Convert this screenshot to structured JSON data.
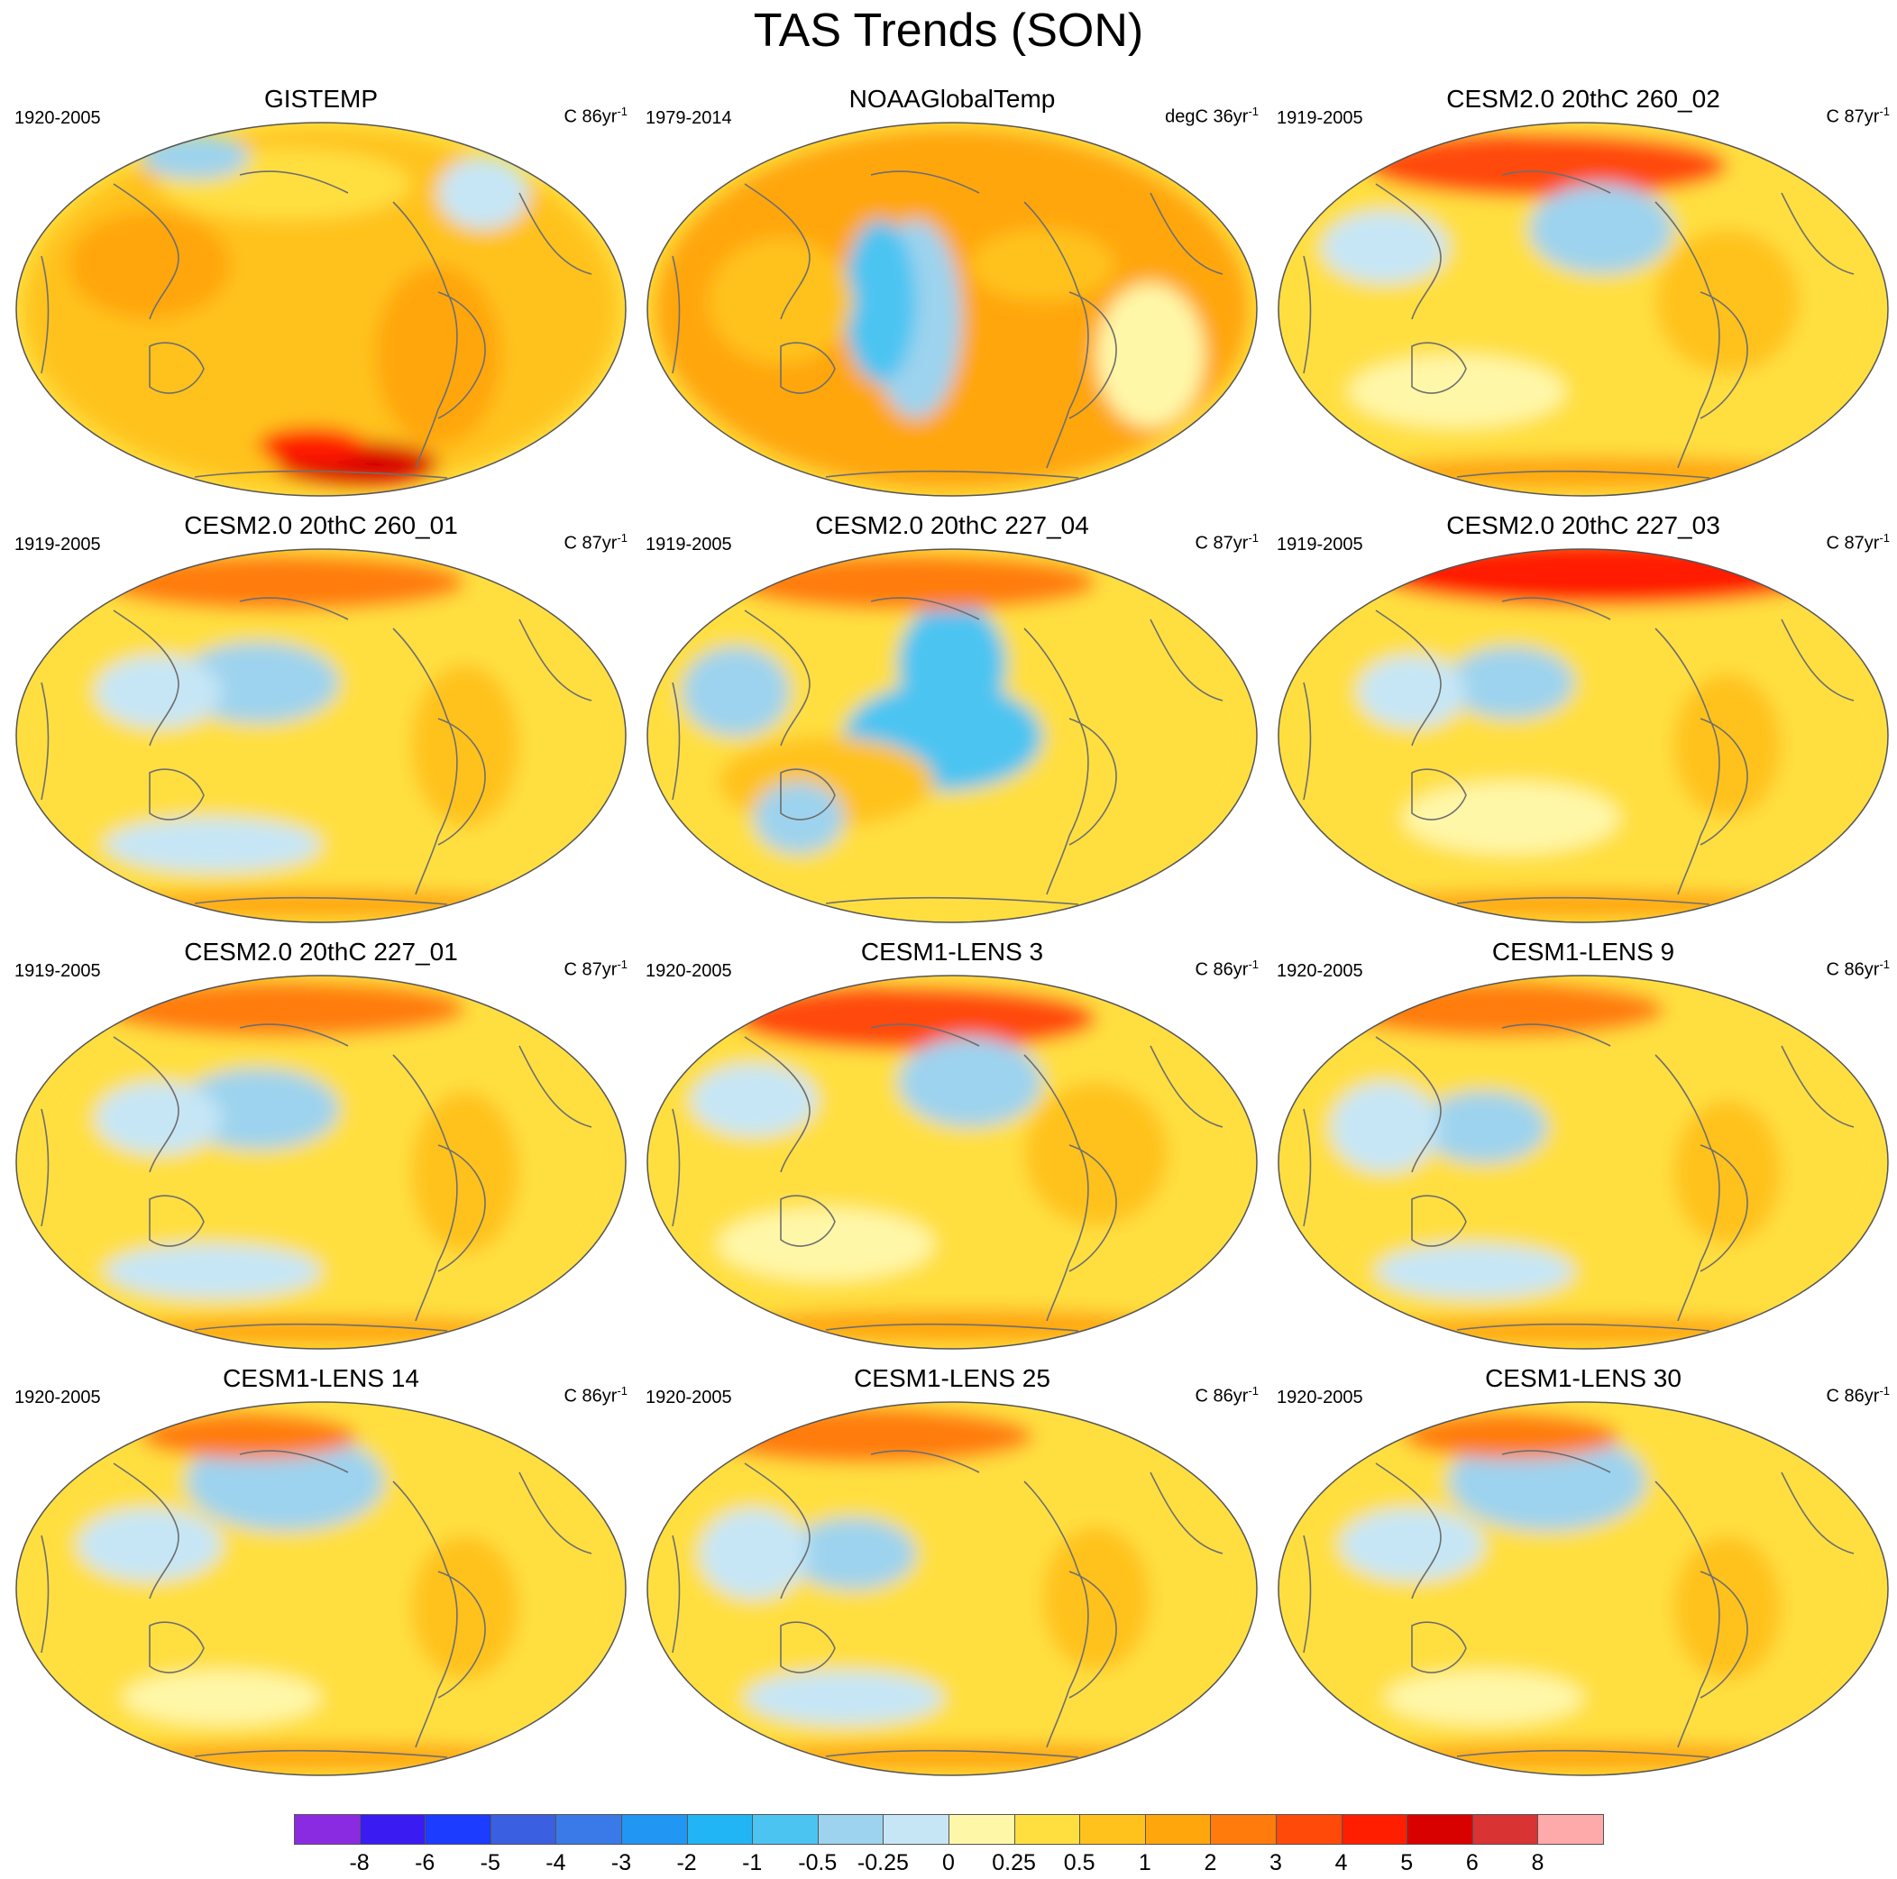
{
  "title": "TAS Trends (SON)",
  "panels": [
    {
      "title": "GISTEMP",
      "period": "1920-2005",
      "units": "C 86yr",
      "units_sup": "-1",
      "style": "obs-gis"
    },
    {
      "title": "NOAAGlobalTemp",
      "period": "1979-2014",
      "units": "degC 36yr",
      "units_sup": "-1",
      "style": "obs-noaa"
    },
    {
      "title": "CESM2.0 20thC 260_02",
      "period": "1919-2005",
      "units": "C 87yr",
      "units_sup": "-1",
      "style": "model-a"
    },
    {
      "title": "CESM2.0 20thC 260_01",
      "period": "1919-2005",
      "units": "C 87yr",
      "units_sup": "-1",
      "style": "model-b"
    },
    {
      "title": "CESM2.0 20thC 227_04",
      "period": "1919-2005",
      "units": "C 87yr",
      "units_sup": "-1",
      "style": "model-cold-pac"
    },
    {
      "title": "CESM2.0 20thC 227_03",
      "period": "1919-2005",
      "units": "C 87yr",
      "units_sup": "-1",
      "style": "model-arctic"
    },
    {
      "title": "CESM2.0 20thC 227_01",
      "period": "1919-2005",
      "units": "C 87yr",
      "units_sup": "-1",
      "style": "model-b"
    },
    {
      "title": "CESM1-LENS 3",
      "period": "1920-2005",
      "units": "C 86yr",
      "units_sup": "-1",
      "style": "model-a"
    },
    {
      "title": "CESM1-LENS 9",
      "period": "1920-2005",
      "units": "C 86yr",
      "units_sup": "-1",
      "style": "model-c"
    },
    {
      "title": "CESM1-LENS 14",
      "period": "1920-2005",
      "units": "C 86yr",
      "units_sup": "-1",
      "style": "model-d"
    },
    {
      "title": "CESM1-LENS 25",
      "period": "1920-2005",
      "units": "C 86yr",
      "units_sup": "-1",
      "style": "model-c"
    },
    {
      "title": "CESM1-LENS 30",
      "period": "1920-2005",
      "units": "C 86yr",
      "units_sup": "-1",
      "style": "model-d"
    }
  ],
  "colorbar": {
    "colors": [
      "#8a2be2",
      "#3a1cf2",
      "#1c3cff",
      "#3a5fe0",
      "#3a7ae8",
      "#2196f3",
      "#22b5f5",
      "#4cc4f2",
      "#9dd3ee",
      "#c6e6f6",
      "#fff7a8",
      "#ffdf40",
      "#ffc21c",
      "#ffa60d",
      "#ff7b0b",
      "#ff4a0a",
      "#ff1f00",
      "#d90000",
      "#d93333",
      "#ffaaaa"
    ],
    "labels": [
      "-8",
      "-6",
      "-5",
      "-4",
      "-3",
      "-2",
      "-1",
      "-0.5",
      "-0.25",
      "0",
      "0.25",
      "0.5",
      "1",
      "2",
      "3",
      "4",
      "5",
      "6",
      "8"
    ]
  }
}
